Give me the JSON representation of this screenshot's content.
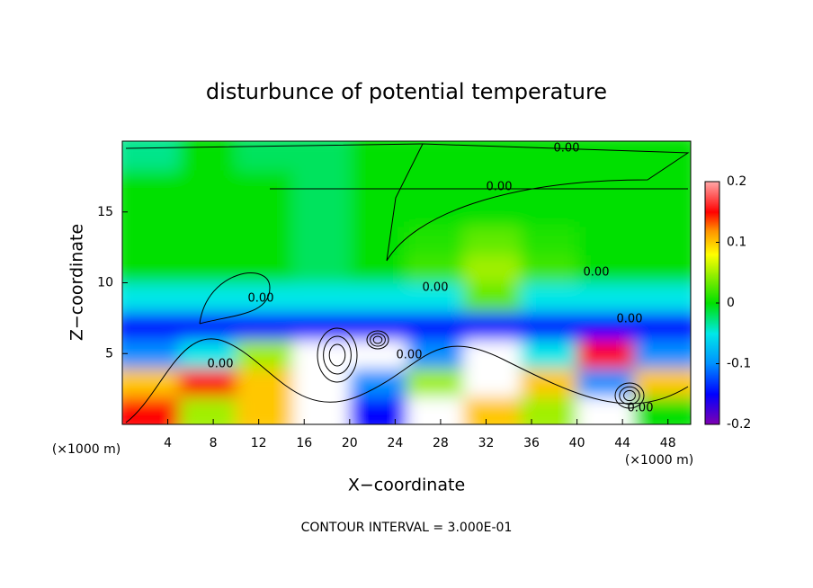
{
  "chart_data": {
    "type": "heatmap",
    "title": "disturbunce of potential temperature",
    "xlabel": "X−coordinate",
    "ylabel": "Z−coordinate",
    "x_unit": "(×1000 m)",
    "footer": "CONTOUR INTERVAL = 3.000E-01",
    "contour_labels": [
      "0.00",
      "0.00",
      "0.00",
      "0.00",
      "0.00",
      "0.00",
      "0.00",
      "0.00",
      "0.00"
    ],
    "xlim": [
      0,
      50
    ],
    "ylim": [
      0,
      20
    ],
    "xticks": [
      4,
      8,
      12,
      16,
      20,
      24,
      28,
      32,
      36,
      40,
      44,
      48
    ],
    "yticks": [
      5,
      10,
      15
    ],
    "x": [
      2.5,
      7.5,
      12.5,
      17.5,
      22.5,
      27.5,
      32.5,
      37.5,
      42.5,
      47.5
    ],
    "y": [
      1,
      3,
      5,
      7,
      9,
      11,
      13,
      15,
      17,
      19
    ],
    "z": [
      [
        0.15,
        0.05,
        0.1,
        -0.3,
        -0.15,
        -0.3,
        0.1,
        0.05,
        -0.3,
        0.0
      ],
      [
        0.1,
        0.15,
        0.1,
        -0.3,
        -0.1,
        0.05,
        -0.3,
        0.1,
        -0.1,
        0.1
      ],
      [
        -0.1,
        -0.05,
        0.05,
        -0.3,
        -0.3,
        -0.1,
        -0.3,
        -0.05,
        0.15,
        -0.1
      ],
      [
        -0.15,
        -0.15,
        -0.15,
        -0.15,
        -0.15,
        -0.15,
        -0.15,
        -0.15,
        -0.15,
        -0.15
      ],
      [
        -0.05,
        -0.05,
        -0.05,
        -0.05,
        -0.05,
        -0.05,
        0.03,
        -0.05,
        -0.05,
        -0.05
      ],
      [
        0.0,
        0.0,
        0.0,
        -0.02,
        0.0,
        0.02,
        0.05,
        0.02,
        0.0,
        0.0
      ],
      [
        0.0,
        0.0,
        0.0,
        -0.02,
        0.0,
        0.01,
        0.03,
        0.01,
        0.0,
        0.0
      ],
      [
        0.0,
        0.0,
        0.0,
        -0.02,
        0.0,
        0.0,
        0.0,
        0.0,
        0.0,
        0.0
      ],
      [
        0.0,
        0.0,
        0.0,
        -0.02,
        0.0,
        0.0,
        0.0,
        0.0,
        0.0,
        0.0
      ],
      [
        -0.03,
        0.0,
        -0.02,
        -0.02,
        0.0,
        0.0,
        0.0,
        0.0,
        0.0,
        0.0
      ]
    ],
    "colormap": [
      {
        "value": -0.2,
        "color": "#8000b0"
      },
      {
        "value": -0.15,
        "color": "#0000ff"
      },
      {
        "value": -0.1,
        "color": "#0090ff"
      },
      {
        "value": -0.05,
        "color": "#00e8e8"
      },
      {
        "value": 0,
        "color": "#00e000"
      },
      {
        "value": 0.05,
        "color": "#a0f000"
      },
      {
        "value": 0.08,
        "color": "#ffff00"
      },
      {
        "value": 0.12,
        "color": "#ff9000"
      },
      {
        "value": 0.15,
        "color": "#ff0000"
      },
      {
        "value": 0.2,
        "color": "#ffa8a8"
      }
    ],
    "out_of_range_color": "#ffffff",
    "colorbar_ticks": [
      0.2,
      0.1,
      0,
      -0.1,
      -0.2
    ]
  }
}
